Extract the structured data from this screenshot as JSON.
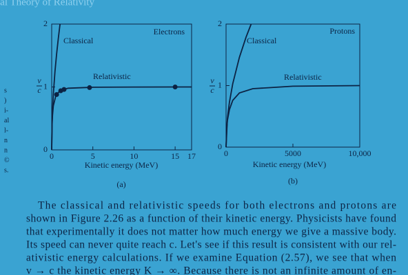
{
  "header": "ial Theory of Relativity",
  "margin": [
    "s",
    ")",
    "i-",
    "al",
    "l-",
    "n",
    "n",
    "©",
    "s."
  ],
  "chart_data": [
    {
      "type": "line",
      "title": "Electrons",
      "caption": "(a)",
      "x_label": "Kinetic energy (MeV)",
      "y_label": {
        "numerator": "v",
        "denominator": "c"
      },
      "xlim": [
        0,
        17
      ],
      "ylim": [
        0,
        2
      ],
      "xticks": [
        0,
        5,
        10,
        15,
        17
      ],
      "yticks": [
        0,
        1,
        2
      ],
      "series": [
        {
          "name": "Classical",
          "x": [
            0,
            0.05,
            0.1,
            0.2,
            0.4,
            0.6,
            0.8,
            1.0,
            1.022
          ],
          "values": [
            0,
            0.44,
            0.63,
            0.89,
            1.25,
            1.53,
            1.77,
            1.98,
            2
          ]
        },
        {
          "name": "Relativistic",
          "x": [
            0,
            0.05,
            0.1,
            0.2,
            0.5,
            1,
            2,
            5,
            10,
            17
          ],
          "values": [
            0,
            0.41,
            0.55,
            0.7,
            0.86,
            0.94,
            0.98,
            0.996,
            0.999,
            1
          ]
        }
      ],
      "points": {
        "x": [
          0.6,
          1.1,
          1.5,
          4.6,
          15
        ],
        "y": [
          0.88,
          0.94,
          0.96,
          0.99,
          1.0
        ]
      }
    },
    {
      "type": "line",
      "title": "Protons",
      "caption": "(b)",
      "x_label": "Kinetic energy (MeV)",
      "y_label": {
        "numerator": "v",
        "denominator": "c"
      },
      "xlim": [
        0,
        10000
      ],
      "ylim": [
        0,
        2
      ],
      "xticks": [
        0,
        5000,
        {
          "value": 10000,
          "label": "10,000"
        }
      ],
      "yticks": [
        0,
        1,
        2
      ],
      "series": [
        {
          "name": "Classical",
          "x": [
            0,
            100,
            250,
            500,
            1000,
            1500,
            1876
          ],
          "values": [
            0,
            0.46,
            0.73,
            1.03,
            1.46,
            1.79,
            2
          ]
        },
        {
          "name": "Relativistic",
          "x": [
            0,
            50,
            100,
            250,
            500,
            1000,
            2000,
            5000,
            10000
          ],
          "values": [
            0,
            0.31,
            0.43,
            0.61,
            0.76,
            0.88,
            0.95,
            0.99,
            1.0
          ]
        }
      ]
    }
  ],
  "paragraph": [
    "The classical and relativistic speeds for both electrons and protons are",
    "shown in Figure 2.26 as a function of their kinetic energy. Physicists have found",
    "that experimentally it does not matter how much energy we give a massive body.",
    "Its speed can never quite reach c. Let's see if this result is consistent with our rel-",
    "ativistic energy calculations. If we examine Equation (2.57), we see that when",
    "v → c the kinetic energy K → ∞. Because there is not an infinite amount of en-"
  ]
}
